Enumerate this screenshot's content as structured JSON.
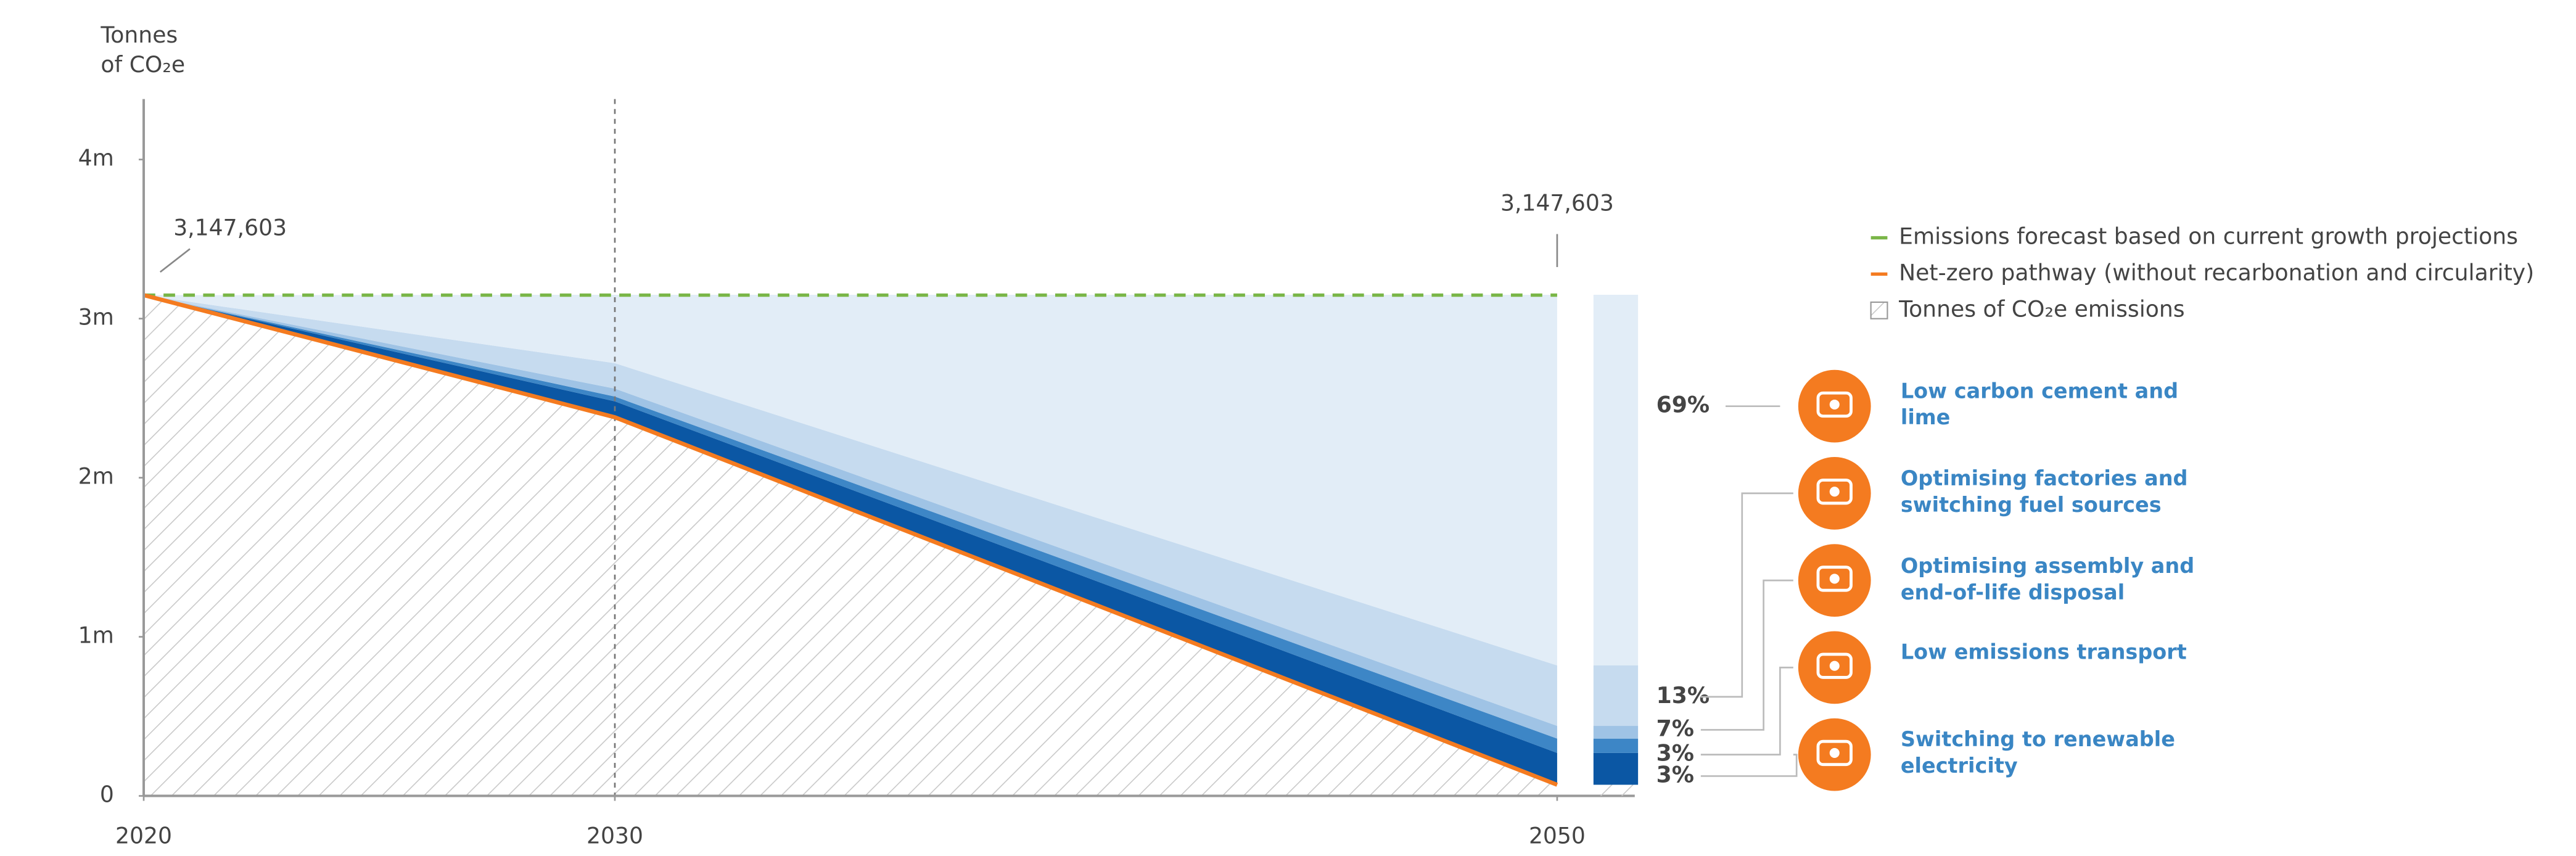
{
  "chart_data": {
    "type": "stacked_area",
    "ylabel": [
      "Tonnes",
      "of CO₂e"
    ],
    "x": [
      2020,
      2030,
      2050
    ],
    "xlim": [
      2020,
      2050
    ],
    "xticks": [
      2020,
      2030,
      2050
    ],
    "ylim": [
      0,
      4380000
    ],
    "yticks": [
      0,
      {
        "value": 1000000,
        "label": "1m"
      },
      {
        "value": 2000000,
        "label": "2m"
      },
      {
        "value": 3000000,
        "label": "3m"
      },
      {
        "value": 4000000,
        "label": "4m"
      }
    ],
    "reference_line_x": 2030,
    "forecast": {
      "name": "Emissions forecast based on current growth projections",
      "color": "#7ab648",
      "values": [
        3147603,
        3147603,
        3147603
      ],
      "dashed": true
    },
    "pathway": {
      "name": "Net-zero pathway (without recarbonation and circularity)",
      "color": "#f47b20",
      "values": [
        3147603,
        2380000,
        70000
      ]
    },
    "emissions_area": {
      "name": "Tonnes of CO₂e emissions",
      "pattern": "hatch"
    },
    "annotations": [
      {
        "x": 2020,
        "value": 3147603,
        "label": "3,147,603"
      },
      {
        "x": 2050,
        "value": 3147603,
        "label": "3,147,603"
      }
    ],
    "series": [
      {
        "name": "Switching to renewable electricity",
        "color": "#0b57a4",
        "values": [
          0,
          100000,
          200000
        ],
        "share_label": "3%"
      },
      {
        "name": "Low emissions transport",
        "color": "#3d86c6",
        "values": [
          0,
          30000,
          90000
        ],
        "share_label": "3%"
      },
      {
        "name": "Optimising assembly and end-of-life disposal",
        "color": "#9fc3e5",
        "values": [
          0,
          50000,
          80000
        ],
        "share_label": "7%"
      },
      {
        "name": "Optimising factories and switching fuel sources",
        "color": "#c6dbef",
        "values": [
          0,
          160000,
          380000
        ],
        "share_label": "13%"
      },
      {
        "name": "Low carbon cement and lime",
        "color": "#e2edf7",
        "values": [
          0,
          430000,
          2330000
        ],
        "share_label": "69%"
      }
    ],
    "share_color": "#7ab648"
  }
}
